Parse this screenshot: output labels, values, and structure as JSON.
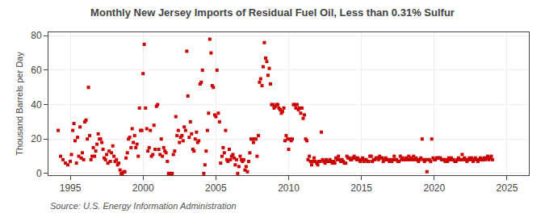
{
  "chart_data": {
    "type": "scatter",
    "title": "Monthly New Jersey Imports of Residual Fuel Oil, Less than 0.31% Sulfur",
    "ylabel": "Thousand Barrels per Day",
    "annotations": [
      "Source: U.S. Energy Information Administration"
    ],
    "color": "#cc0000",
    "marker": "square",
    "grid": true,
    "xlim": [
      1993.5,
      2026.5
    ],
    "ylim": [
      -1,
      82
    ],
    "xticks": [
      1995,
      2000,
      2005,
      2010,
      2015,
      2020,
      2025
    ],
    "yticks": [
      0,
      20,
      40,
      60,
      80
    ],
    "x": [
      1994.17,
      1994.33,
      1994.5,
      1994.67,
      1994.83,
      1995.0,
      1995.08,
      1995.17,
      1995.25,
      1995.33,
      1995.42,
      1995.5,
      1995.58,
      1995.67,
      1995.75,
      1995.83,
      1995.92,
      1996.0,
      1996.08,
      1996.17,
      1996.25,
      1996.33,
      1996.42,
      1996.5,
      1996.58,
      1996.67,
      1996.75,
      1996.83,
      1996.92,
      1997.0,
      1997.08,
      1997.17,
      1997.25,
      1997.33,
      1997.42,
      1997.5,
      1997.58,
      1997.67,
      1997.75,
      1997.83,
      1997.92,
      1998.0,
      1998.08,
      1998.17,
      1998.25,
      1998.33,
      1998.42,
      1998.5,
      1998.58,
      1998.67,
      1998.75,
      1998.83,
      1998.92,
      1999.0,
      1999.08,
      1999.17,
      1999.25,
      1999.33,
      1999.42,
      1999.5,
      1999.58,
      1999.67,
      1999.75,
      1999.83,
      1999.92,
      2000.0,
      2000.08,
      2000.17,
      2000.25,
      2000.33,
      2000.42,
      2000.5,
      2000.58,
      2000.67,
      2000.75,
      2000.83,
      2000.92,
      2001.0,
      2001.08,
      2001.17,
      2001.25,
      2001.33,
      2001.42,
      2001.5,
      2001.58,
      2001.67,
      2001.75,
      2001.83,
      2001.92,
      2002.0,
      2002.08,
      2002.17,
      2002.25,
      2002.33,
      2002.42,
      2002.5,
      2002.58,
      2002.67,
      2002.75,
      2002.83,
      2002.92,
      2003.0,
      2003.08,
      2003.17,
      2003.25,
      2003.33,
      2003.42,
      2003.5,
      2003.58,
      2003.67,
      2003.75,
      2003.83,
      2003.92,
      2004.0,
      2004.08,
      2004.17,
      2004.25,
      2004.33,
      2004.42,
      2004.5,
      2004.58,
      2004.67,
      2004.75,
      2004.83,
      2004.92,
      2005.0,
      2005.08,
      2005.17,
      2005.25,
      2005.33,
      2005.42,
      2005.5,
      2005.58,
      2005.67,
      2005.75,
      2005.83,
      2005.92,
      2006.0,
      2006.08,
      2006.17,
      2006.25,
      2006.33,
      2006.42,
      2006.5,
      2006.58,
      2006.67,
      2006.75,
      2006.83,
      2006.92,
      2007.0,
      2007.08,
      2007.17,
      2007.25,
      2007.33,
      2007.42,
      2007.5,
      2007.58,
      2007.67,
      2007.75,
      2007.83,
      2007.92,
      2008.0,
      2008.08,
      2008.17,
      2008.25,
      2008.33,
      2008.42,
      2008.5,
      2008.58,
      2008.67,
      2008.75,
      2008.83,
      2008.92,
      2009.0,
      2009.08,
      2009.17,
      2009.25,
      2009.33,
      2009.42,
      2009.5,
      2009.58,
      2009.67,
      2009.75,
      2009.83,
      2009.92,
      2010.0,
      2010.08,
      2010.17,
      2010.25,
      2010.33,
      2010.42,
      2010.5,
      2010.58,
      2010.67,
      2010.75,
      2010.83,
      2010.92,
      2011.0,
      2011.08,
      2011.17,
      2011.25,
      2011.33,
      2011.42,
      2011.5,
      2011.58,
      2011.67,
      2011.75,
      2011.83,
      2011.92,
      2012.0,
      2012.08,
      2012.17,
      2012.25,
      2012.33,
      2012.42,
      2012.5,
      2012.58,
      2012.67,
      2012.75,
      2012.83,
      2012.92,
      2013.0,
      2013.08,
      2013.17,
      2013.25,
      2013.33,
      2013.42,
      2013.5,
      2013.58,
      2013.67,
      2013.75,
      2013.83,
      2013.92,
      2014.0,
      2014.08,
      2014.17,
      2014.25,
      2014.33,
      2014.42,
      2014.5,
      2014.58,
      2014.67,
      2014.75,
      2014.83,
      2014.92,
      2015.0,
      2015.08,
      2015.17,
      2015.25,
      2015.33,
      2015.42,
      2015.5,
      2015.58,
      2015.67,
      2015.75,
      2015.83,
      2015.92,
      2016.0,
      2016.08,
      2016.17,
      2016.25,
      2016.33,
      2016.42,
      2016.5,
      2016.58,
      2016.67,
      2016.75,
      2016.83,
      2016.92,
      2017.0,
      2017.08,
      2017.17,
      2017.25,
      2017.33,
      2017.42,
      2017.5,
      2017.58,
      2017.67,
      2017.75,
      2017.83,
      2017.92,
      2018.0,
      2018.08,
      2018.17,
      2018.25,
      2018.33,
      2018.42,
      2018.5,
      2018.58,
      2018.67,
      2018.75,
      2018.83,
      2018.92,
      2019.0,
      2019.08,
      2019.17,
      2019.25,
      2019.33,
      2019.42,
      2019.5,
      2019.58,
      2019.67,
      2019.75,
      2019.83,
      2019.92,
      2020.0,
      2020.08,
      2020.17,
      2020.25,
      2020.33,
      2020.42,
      2020.5,
      2020.58,
      2020.67,
      2020.75,
      2020.83,
      2020.92,
      2021.0,
      2021.08,
      2021.17,
      2021.25,
      2021.33,
      2021.42,
      2021.5,
      2021.58,
      2021.67,
      2021.75,
      2021.83,
      2021.92,
      2022.0,
      2022.08,
      2022.17,
      2022.25,
      2022.33,
      2022.42,
      2022.5,
      2022.58,
      2022.67,
      2022.75,
      2022.83,
      2022.92,
      2023.0,
      2023.08,
      2023.17,
      2023.25,
      2023.33,
      2023.42,
      2023.5,
      2023.58,
      2023.67,
      2023.75,
      2023.83,
      2023.92,
      2024.0
    ],
    "values": [
      25,
      10,
      8,
      6,
      5,
      7,
      11,
      25,
      29,
      19,
      6,
      21,
      10,
      27,
      9,
      12,
      8,
      30,
      31,
      20,
      50,
      22,
      8,
      10,
      15,
      10,
      13,
      17,
      23,
      20,
      20,
      18,
      14,
      9,
      8,
      11,
      6,
      13,
      7,
      12,
      16,
      10,
      7,
      8,
      5,
      6,
      2,
      0,
      0,
      1,
      1,
      9,
      12,
      20,
      21,
      15,
      26,
      18,
      22,
      15,
      17,
      10,
      38,
      25,
      25,
      58,
      75,
      38,
      26,
      13,
      15,
      25,
      10,
      11,
      28,
      14,
      39,
      40,
      14,
      11,
      20,
      10,
      15,
      13,
      12,
      7,
      0,
      0,
      0,
      0,
      11,
      13,
      33,
      22,
      25,
      18,
      21,
      22,
      19,
      27,
      25,
      71,
      45,
      21,
      30,
      23,
      14,
      13,
      20,
      24,
      18,
      19,
      52,
      53,
      60,
      0,
      5,
      13,
      25,
      35,
      78,
      70,
      51,
      50,
      34,
      33,
      60,
      35,
      30,
      6,
      10,
      15,
      12,
      25,
      8,
      7,
      14,
      8,
      10,
      11,
      9,
      5,
      8,
      0,
      4,
      10,
      8,
      7,
      8,
      2,
      4,
      1,
      7,
      12,
      20,
      20,
      18,
      20,
      20,
      10,
      22,
      53,
      55,
      51,
      62,
      76,
      67,
      65,
      57,
      61,
      52,
      40,
      40,
      38,
      39,
      40,
      40,
      38,
      37,
      35,
      36,
      38,
      19,
      22,
      20,
      14,
      20,
      19,
      20,
      40,
      40,
      38,
      40,
      37,
      38,
      35,
      38,
      32,
      34,
      20,
      19,
      8,
      10,
      7,
      5,
      7,
      9,
      7,
      6,
      5,
      7,
      7,
      24,
      8,
      7,
      6,
      8,
      7,
      7,
      8,
      7,
      6,
      7,
      6,
      9,
      8,
      10,
      8,
      7,
      8,
      7,
      6,
      6,
      10,
      9,
      9,
      8,
      8,
      9,
      10,
      9,
      8,
      9,
      8,
      7,
      8,
      9,
      7,
      8,
      8,
      7,
      7,
      10,
      10,
      7,
      8,
      8,
      9,
      9,
      8,
      10,
      9,
      9,
      7,
      8,
      9,
      8,
      8,
      7,
      8,
      7,
      8,
      10,
      8,
      8,
      7,
      7,
      10,
      8,
      9,
      8,
      8,
      9,
      8,
      10,
      8,
      9,
      8,
      10,
      8,
      9,
      8,
      7,
      8,
      9,
      20,
      8,
      7,
      8,
      1,
      8,
      8,
      7,
      20,
      9,
      8,
      8,
      9,
      9,
      9,
      9,
      8,
      8,
      8,
      7,
      8,
      7,
      9,
      8,
      9,
      8,
      8,
      7,
      7,
      8,
      9,
      8,
      8,
      11,
      8,
      9,
      8,
      7,
      8,
      9,
      8,
      9,
      7,
      8,
      9,
      8,
      7,
      8,
      9,
      8,
      8,
      9,
      8,
      9,
      10,
      8,
      9,
      10,
      8
    ]
  }
}
